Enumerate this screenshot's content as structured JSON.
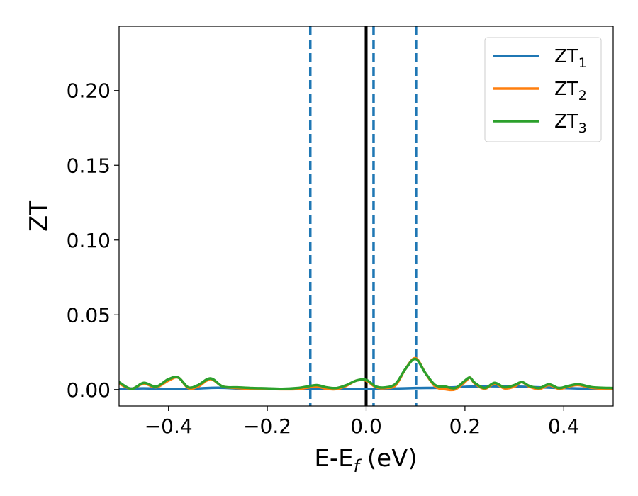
{
  "chart_data": {
    "type": "line",
    "title": "",
    "xlabel": {
      "base": "E-E",
      "sub": "f",
      "rest": " (eV)"
    },
    "ylabel": "ZT",
    "xlim": [
      -0.5,
      0.5
    ],
    "ylim": [
      -0.011,
      0.243
    ],
    "xticks": [
      -0.4,
      -0.2,
      0.0,
      0.2,
      0.4
    ],
    "xtick_labels": [
      "−0.4",
      "−0.2",
      "0.0",
      "0.2",
      "0.4"
    ],
    "yticks": [
      0.0,
      0.05,
      0.1,
      0.15,
      0.2
    ],
    "ytick_labels": [
      "0.00",
      "0.05",
      "0.10",
      "0.15",
      "0.20"
    ],
    "grid": false,
    "legend_position": "top-right",
    "vlines": [
      {
        "x": 0.0,
        "style": "solid",
        "color": "#000000"
      },
      {
        "x": -0.113,
        "style": "dashed",
        "color": "#1f77b4"
      },
      {
        "x": 0.015,
        "style": "dashed",
        "color": "#1f77b4"
      },
      {
        "x": 0.101,
        "style": "dashed",
        "color": "#1f77b4"
      }
    ],
    "series": [
      {
        "name": "ZT",
        "sub": "1",
        "color": "#1f77b4",
        "x": [
          -0.5,
          -0.45,
          -0.4,
          -0.35,
          -0.3,
          -0.25,
          -0.2,
          -0.15,
          -0.1,
          -0.05,
          0.0,
          0.05,
          0.1,
          0.15,
          0.2,
          0.25,
          0.3,
          0.35,
          0.4,
          0.45,
          0.5
        ],
        "y": [
          0.0005,
          0.0008,
          0.0004,
          0.0006,
          0.0012,
          0.0006,
          0.0003,
          0.0005,
          0.0007,
          0.0004,
          0.0004,
          0.0006,
          0.001,
          0.0012,
          0.0018,
          0.0022,
          0.002,
          0.0015,
          0.001,
          0.0006,
          0.0004
        ]
      },
      {
        "name": "ZT",
        "sub": "2",
        "color": "#ff7f0e",
        "x": [
          -0.5,
          -0.475,
          -0.45,
          -0.425,
          -0.4,
          -0.38,
          -0.36,
          -0.34,
          -0.315,
          -0.29,
          -0.26,
          -0.23,
          -0.2,
          -0.17,
          -0.14,
          -0.12,
          -0.1,
          -0.08,
          -0.06,
          -0.04,
          -0.02,
          0.0,
          0.02,
          0.04,
          0.06,
          0.08,
          0.1,
          0.12,
          0.14,
          0.16,
          0.18,
          0.2,
          0.21,
          0.22,
          0.24,
          0.26,
          0.28,
          0.3,
          0.315,
          0.33,
          0.35,
          0.37,
          0.39,
          0.41,
          0.43,
          0.46,
          0.5
        ],
        "y": [
          0.004,
          0.0005,
          0.004,
          0.0015,
          0.006,
          0.008,
          0.001,
          0.002,
          0.007,
          0.002,
          0.001,
          0.0005,
          0.0004,
          0.0002,
          0.0003,
          0.0012,
          0.002,
          0.0005,
          0.0003,
          0.0025,
          0.006,
          0.006,
          0.0015,
          0.001,
          0.003,
          0.014,
          0.021,
          0.011,
          0.002,
          0.0002,
          0.0001,
          0.005,
          0.008,
          0.004,
          0.0005,
          0.004,
          0.0008,
          0.002,
          0.005,
          0.002,
          0.0003,
          0.003,
          0.0005,
          0.002,
          0.003,
          0.001,
          0.0005
        ]
      },
      {
        "name": "ZT",
        "sub": "3",
        "color": "#2ca02c",
        "x": [
          -0.5,
          -0.475,
          -0.45,
          -0.425,
          -0.4,
          -0.38,
          -0.36,
          -0.34,
          -0.315,
          -0.29,
          -0.26,
          -0.23,
          -0.2,
          -0.17,
          -0.14,
          -0.12,
          -0.1,
          -0.08,
          -0.06,
          -0.04,
          -0.02,
          0.0,
          0.02,
          0.04,
          0.06,
          0.08,
          0.1,
          0.12,
          0.14,
          0.16,
          0.18,
          0.2,
          0.21,
          0.22,
          0.24,
          0.26,
          0.28,
          0.3,
          0.315,
          0.33,
          0.35,
          0.37,
          0.39,
          0.41,
          0.43,
          0.46,
          0.5
        ],
        "y": [
          0.005,
          0.0005,
          0.0045,
          0.002,
          0.007,
          0.008,
          0.0015,
          0.003,
          0.0075,
          0.002,
          0.0015,
          0.001,
          0.0008,
          0.0005,
          0.001,
          0.002,
          0.003,
          0.0015,
          0.001,
          0.003,
          0.006,
          0.0065,
          0.002,
          0.0015,
          0.004,
          0.014,
          0.0205,
          0.011,
          0.003,
          0.002,
          0.001,
          0.006,
          0.008,
          0.0045,
          0.001,
          0.0045,
          0.0015,
          0.003,
          0.005,
          0.0025,
          0.001,
          0.0035,
          0.001,
          0.0025,
          0.0035,
          0.0015,
          0.001
        ]
      }
    ]
  }
}
